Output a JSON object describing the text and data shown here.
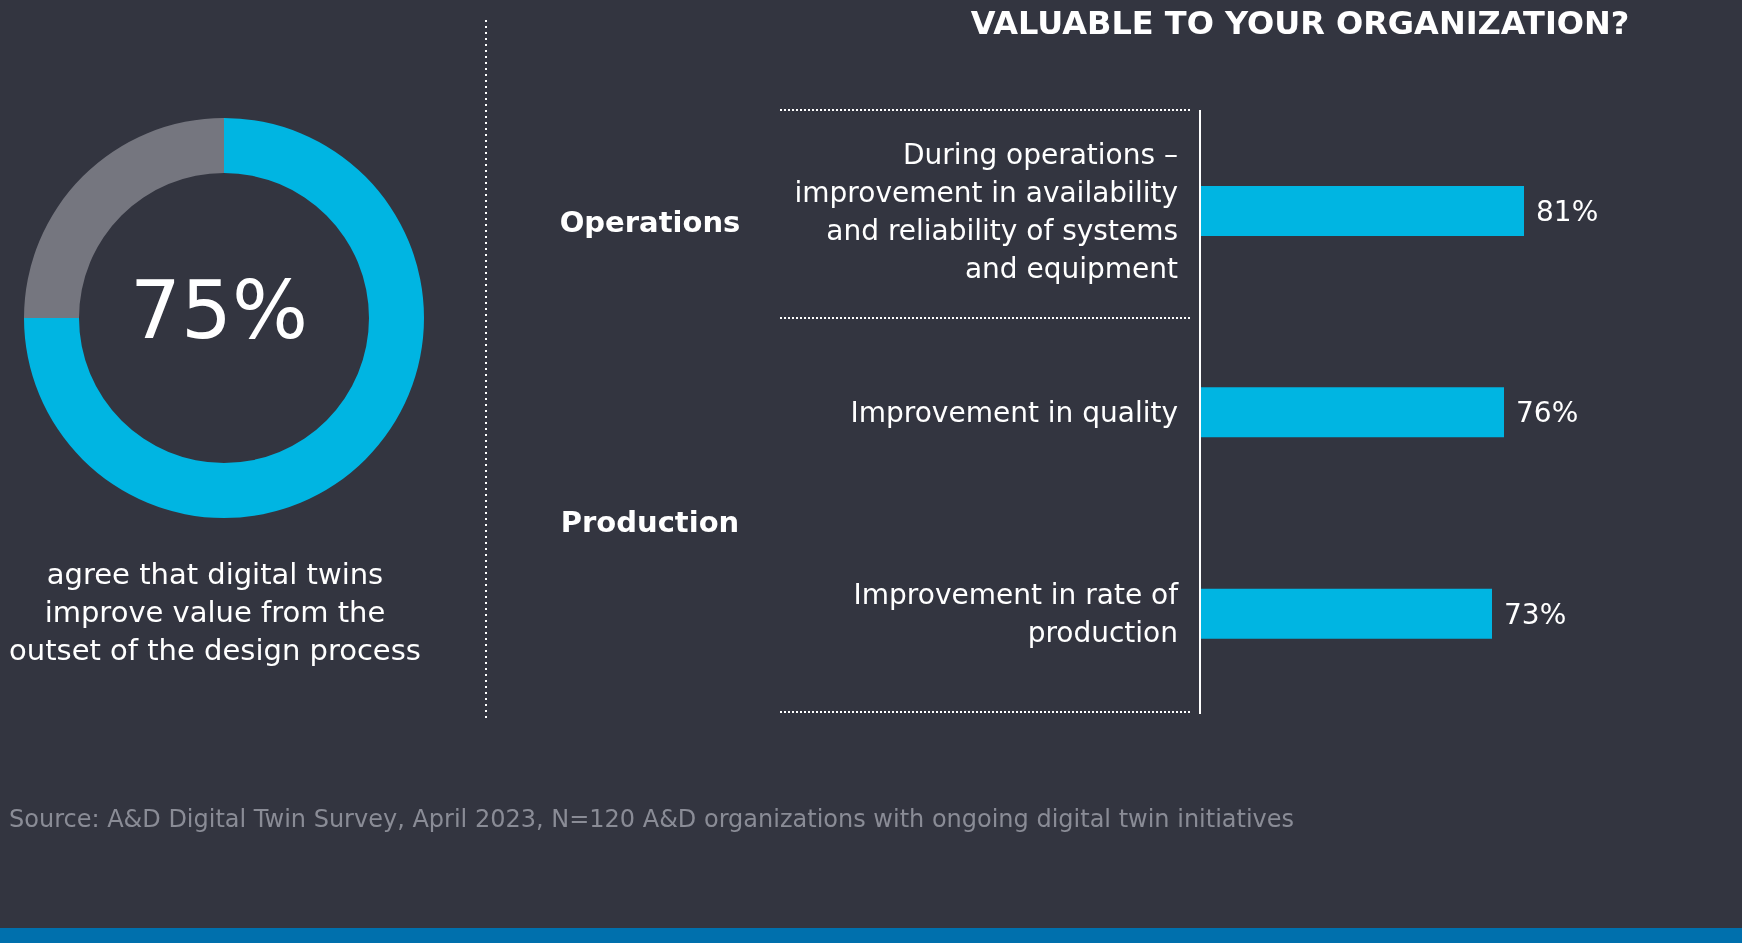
{
  "chart_data": [
    {
      "type": "donut",
      "categories": [
        null,
        null
      ],
      "values": [
        75,
        25
      ],
      "colors": [
        "#00b5e2",
        "#75767f"
      ],
      "annotations": [
        "75%",
        "agree that digital twins improve value from the outset of the design process",
        "Source: A&D Digital Twin Survey, April 2023, N=120 A&D organizations with ongoing digital twin initiatives"
      ]
    },
    {
      "type": "bar",
      "orientation": "horizontal",
      "title": "VALUABLE TO YOUR ORGANIZATION?",
      "categories": [
        "During operations – improvement in availability and reliability of systems and equipment",
        "Improvement in quality",
        "Improvement in rate of production"
      ],
      "values": [
        81,
        76,
        73
      ],
      "color": "#00b5e2",
      "value_labels": [
        "81%",
        "76%",
        "73%"
      ],
      "tick_labels": "y",
      "annotations": [
        "Operations",
        "Production"
      ]
    }
  ]
}
